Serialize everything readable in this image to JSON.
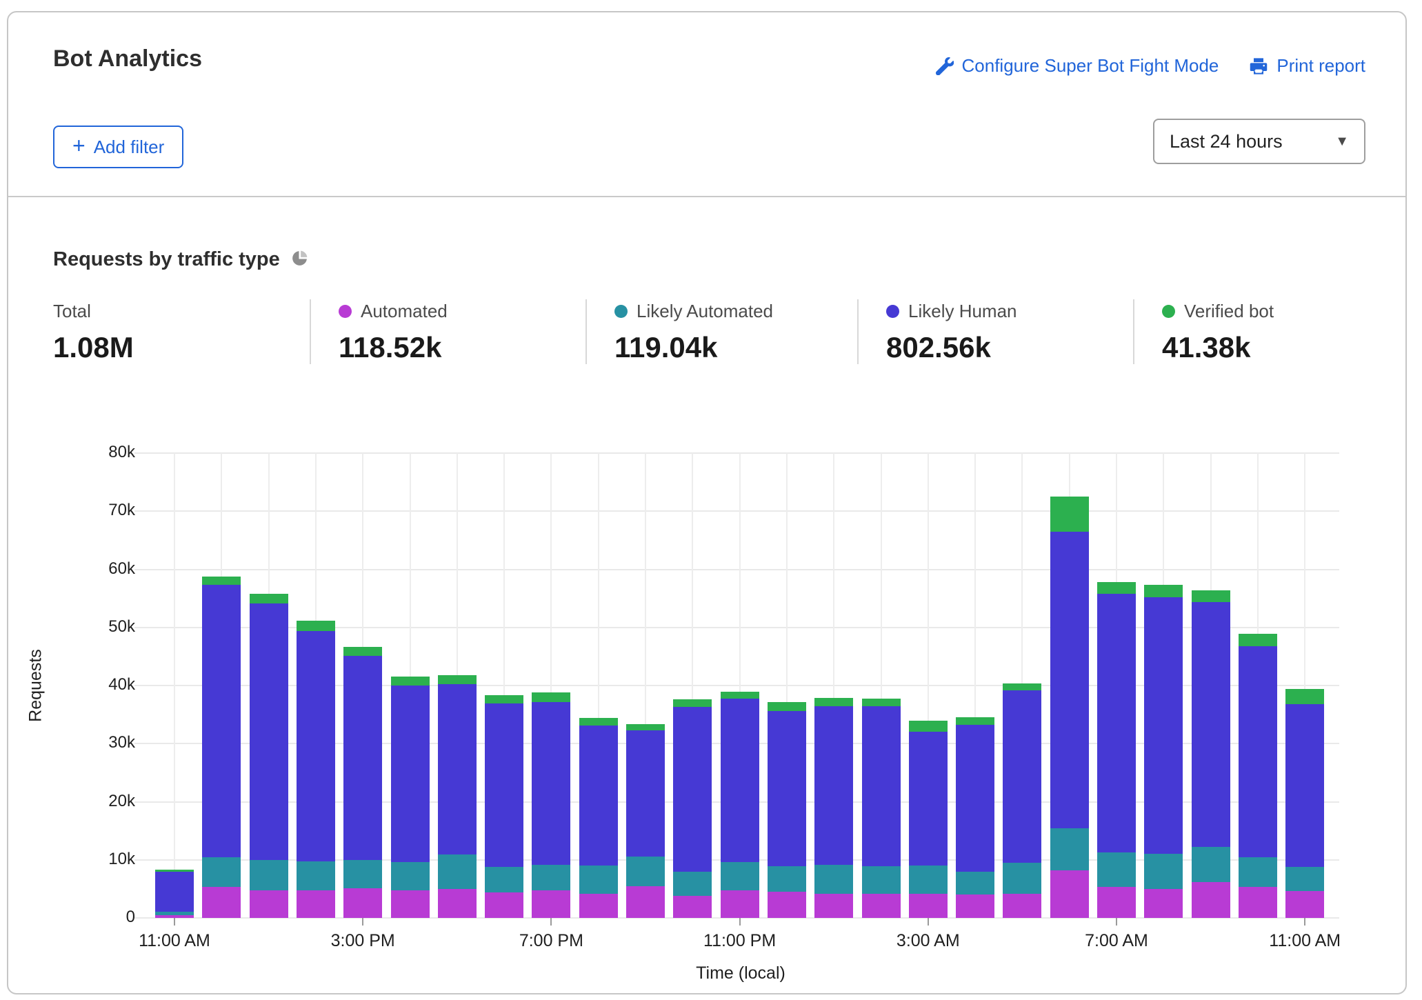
{
  "header": {
    "title": "Bot Analytics",
    "configure_link": "Configure Super Bot Fight Mode",
    "print_link": "Print report",
    "add_filter_label": "Add filter",
    "add_filter_plus": "+",
    "time_range_value": "Last 24 hours",
    "caret": "▼"
  },
  "section": {
    "title": "Requests by traffic type",
    "stats": [
      {
        "label": "Total",
        "value": "1.08M",
        "color": null
      },
      {
        "label": "Automated",
        "value": "118.52k",
        "color": "#b83bd4"
      },
      {
        "label": "Likely Automated",
        "value": "119.04k",
        "color": "#2791a3"
      },
      {
        "label": "Likely Human",
        "value": "802.56k",
        "color": "#4639d4"
      },
      {
        "label": "Verified bot",
        "value": "41.38k",
        "color": "#2cb04f"
      }
    ]
  },
  "chart_data": {
    "type": "bar",
    "stacked": true,
    "title": "Requests by traffic type",
    "xlabel": "Time (local)",
    "ylabel": "Requests",
    "ylim": [
      0,
      80000
    ],
    "grid": true,
    "ytick_labels": [
      "0",
      "10k",
      "20k",
      "30k",
      "40k",
      "50k",
      "60k",
      "70k",
      "80k"
    ],
    "ytick_values": [
      0,
      10000,
      20000,
      30000,
      40000,
      50000,
      60000,
      70000,
      80000
    ],
    "labeled_x_indices": [
      0,
      4,
      8,
      12,
      16,
      20,
      24
    ],
    "categories": [
      "11:00 AM",
      "12:00 PM",
      "1:00 PM",
      "2:00 PM",
      "3:00 PM",
      "4:00 PM",
      "5:00 PM",
      "6:00 PM",
      "7:00 PM",
      "8:00 PM",
      "9:00 PM",
      "10:00 PM",
      "11:00 PM",
      "12:00 AM",
      "1:00 AM",
      "2:00 AM",
      "3:00 AM",
      "4:00 AM",
      "5:00 AM",
      "6:00 AM",
      "7:00 AM",
      "8:00 AM",
      "9:00 AM",
      "10:00 AM",
      "11:00 AM"
    ],
    "series": [
      {
        "name": "Automated",
        "color": "#b83bd4",
        "values": [
          500,
          5400,
          4800,
          4700,
          5100,
          4800,
          5000,
          4400,
          4700,
          4200,
          5500,
          3800,
          4800,
          4500,
          4200,
          4200,
          4100,
          4000,
          4200,
          8200,
          5300,
          5000,
          6200,
          5400,
          4600
        ]
      },
      {
        "name": "Likely Automated",
        "color": "#2791a3",
        "values": [
          600,
          5100,
          5200,
          5000,
          4900,
          4800,
          5900,
          4400,
          4500,
          4800,
          5100,
          4100,
          4800,
          4400,
          5000,
          4700,
          4900,
          3900,
          5300,
          7200,
          6000,
          6000,
          6000,
          5100,
          4200
        ]
      },
      {
        "name": "Likely Human",
        "color": "#4639d4",
        "values": [
          6800,
          46800,
          44100,
          39700,
          35100,
          30400,
          29300,
          28100,
          28000,
          24100,
          21700,
          28400,
          28200,
          26700,
          27300,
          27500,
          23100,
          25300,
          29700,
          51100,
          44500,
          44200,
          42200,
          36300,
          28000
        ]
      },
      {
        "name": "Verified bot",
        "color": "#2cb04f",
        "values": [
          400,
          1500,
          1700,
          1800,
          1500,
          1500,
          1600,
          1500,
          1600,
          1300,
          1000,
          1300,
          1100,
          1500,
          1400,
          1400,
          1900,
          1400,
          1200,
          6000,
          2000,
          2100,
          2000,
          2100,
          2600
        ]
      }
    ],
    "legend_position": "top"
  }
}
